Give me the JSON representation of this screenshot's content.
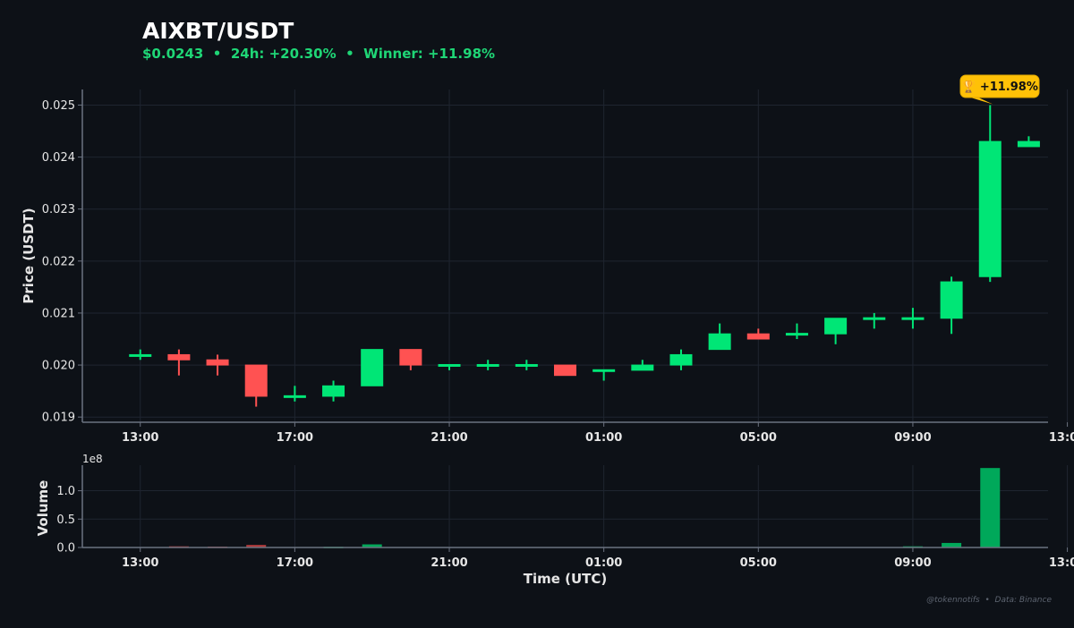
{
  "header": {
    "title": "AIXBT/USDT",
    "price": "$0.0243",
    "change_24h": "24h: +20.30%",
    "winner": "Winner: +11.98%",
    "separator": "•"
  },
  "credit": {
    "handle": "@tokennotifs",
    "source": "Data: Binance",
    "separator": "•"
  },
  "colors": {
    "background": "#0d1117",
    "up": "#00e676",
    "down": "#ff5252",
    "volume_up": "#00a85a",
    "volume_down": "#b23b3b",
    "badge": "#ffc107",
    "grid": "#1f2530",
    "axis": "#6b7280"
  },
  "chart_data": [
    {
      "type": "candlestick",
      "ylabel": "Price (USDT)",
      "ylim": [
        0.0189,
        0.0253
      ],
      "yticks": [
        "0.019",
        "0.020",
        "0.021",
        "0.022",
        "0.023",
        "0.024",
        "0.025"
      ],
      "yticks_values": [
        0.019,
        0.02,
        0.021,
        0.022,
        0.023,
        0.024,
        0.025
      ],
      "x_unit": "hours since 12:00 UTC",
      "xlim": [
        -0.5,
        24.5
      ],
      "xticks": [
        "13:00",
        "17:00",
        "21:00",
        "01:00",
        "05:00",
        "09:00",
        "13:00"
      ],
      "xticks_values": [
        1,
        5,
        9,
        13,
        17,
        21,
        25
      ],
      "grid": true,
      "candles": [
        {
          "t": 1,
          "o": 0.0202,
          "h": 0.0203,
          "l": 0.0201,
          "c": 0.0202
        },
        {
          "t": 2,
          "o": 0.0202,
          "h": 0.0203,
          "l": 0.0198,
          "c": 0.0201
        },
        {
          "t": 3,
          "o": 0.0201,
          "h": 0.0202,
          "l": 0.0198,
          "c": 0.02
        },
        {
          "t": 4,
          "o": 0.02,
          "h": 0.02,
          "l": 0.0192,
          "c": 0.0194
        },
        {
          "t": 5,
          "o": 0.0194,
          "h": 0.0196,
          "l": 0.0193,
          "c": 0.01941
        },
        {
          "t": 6,
          "o": 0.0194,
          "h": 0.0197,
          "l": 0.0193,
          "c": 0.0196
        },
        {
          "t": 7,
          "o": 0.0196,
          "h": 0.0203,
          "l": 0.0196,
          "c": 0.0203
        },
        {
          "t": 8,
          "o": 0.0203,
          "h": 0.0203,
          "l": 0.0199,
          "c": 0.02
        },
        {
          "t": 9,
          "o": 0.02,
          "h": 0.02,
          "l": 0.0199,
          "c": 0.02001
        },
        {
          "t": 10,
          "o": 0.02,
          "h": 0.0201,
          "l": 0.0199,
          "c": 0.02001
        },
        {
          "t": 11,
          "o": 0.02,
          "h": 0.0201,
          "l": 0.0199,
          "c": 0.02001
        },
        {
          "t": 12,
          "o": 0.02,
          "h": 0.02,
          "l": 0.0198,
          "c": 0.0198
        },
        {
          "t": 13,
          "o": 0.0199,
          "h": 0.0199,
          "l": 0.0197,
          "c": 0.01991
        },
        {
          "t": 14,
          "o": 0.0199,
          "h": 0.0201,
          "l": 0.0199,
          "c": 0.02
        },
        {
          "t": 15,
          "o": 0.02,
          "h": 0.0203,
          "l": 0.0199,
          "c": 0.0202
        },
        {
          "t": 16,
          "o": 0.0203,
          "h": 0.0208,
          "l": 0.0203,
          "c": 0.0206
        },
        {
          "t": 17,
          "o": 0.0206,
          "h": 0.0207,
          "l": 0.0205,
          "c": 0.0205
        },
        {
          "t": 18,
          "o": 0.0206,
          "h": 0.0208,
          "l": 0.0205,
          "c": 0.02061
        },
        {
          "t": 19,
          "o": 0.0206,
          "h": 0.0209,
          "l": 0.0204,
          "c": 0.0209
        },
        {
          "t": 20,
          "o": 0.0209,
          "h": 0.021,
          "l": 0.0207,
          "c": 0.02091
        },
        {
          "t": 21,
          "o": 0.0209,
          "h": 0.0211,
          "l": 0.0207,
          "c": 0.02091
        },
        {
          "t": 22,
          "o": 0.0209,
          "h": 0.0217,
          "l": 0.0206,
          "c": 0.0216
        },
        {
          "t": 23,
          "o": 0.0217,
          "h": 0.025,
          "l": 0.0216,
          "c": 0.0243
        },
        {
          "t": 24,
          "o": 0.0242,
          "h": 0.0244,
          "l": 0.0242,
          "c": 0.0243
        }
      ],
      "annotation": {
        "text": "🏆 +11.98%",
        "t": 23,
        "price": 0.025
      }
    },
    {
      "type": "bar",
      "ylabel": "Volume",
      "offset_label": "1e8",
      "ylim": [
        0,
        1.45
      ],
      "yticks": [
        "0.0",
        "0.5",
        "1.0"
      ],
      "yticks_values": [
        0.0,
        0.5,
        1.0
      ],
      "xlabel": "Time (UTC)",
      "xticks": [
        "13:00",
        "17:00",
        "21:00",
        "01:00",
        "05:00",
        "09:00",
        "13:00"
      ],
      "xticks_values": [
        1,
        5,
        9,
        13,
        17,
        21,
        25
      ],
      "grid": true,
      "bars": [
        {
          "t": 2,
          "v": 0.02,
          "dir": "down"
        },
        {
          "t": 3,
          "v": 0.015,
          "dir": "down"
        },
        {
          "t": 4,
          "v": 0.045,
          "dir": "down"
        },
        {
          "t": 6,
          "v": 0.012,
          "dir": "up"
        },
        {
          "t": 7,
          "v": 0.055,
          "dir": "up"
        },
        {
          "t": 21,
          "v": 0.02,
          "dir": "up"
        },
        {
          "t": 22,
          "v": 0.08,
          "dir": "up"
        },
        {
          "t": 23,
          "v": 1.4,
          "dir": "up"
        }
      ]
    }
  ]
}
